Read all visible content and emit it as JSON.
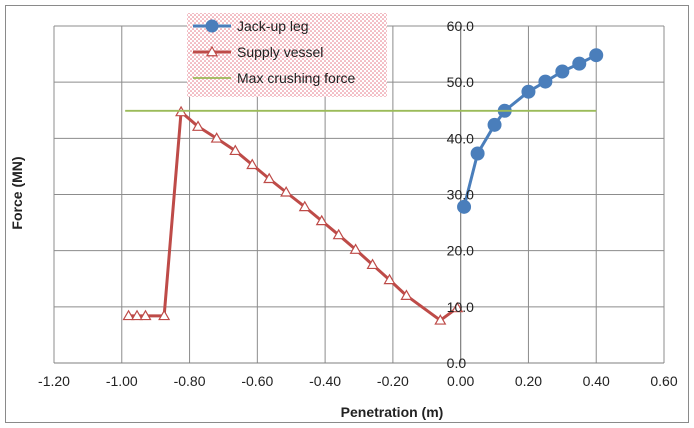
{
  "chart_data": {
    "type": "line",
    "title": "",
    "xlabel": "Penetration (m)",
    "ylabel": "Force (MN)",
    "xlim": [
      -1.2,
      0.6
    ],
    "ylim": [
      0,
      60
    ],
    "x_ticks": [
      "-1.20",
      "-1.00",
      "-0.80",
      "-0.60",
      "-0.40",
      "-0.20",
      "0.00",
      "0.20",
      "0.40",
      "0.60"
    ],
    "y_ticks": [
      "0.0",
      "10.0",
      "20.0",
      "30.0",
      "40.0",
      "50.0",
      "60.0"
    ],
    "grid": "vertical and horizontal major gridlines",
    "y_axis_position": "x = 0 (labels to the right of the axis)",
    "legend": "top-center, dotted pink background",
    "series": [
      {
        "name": "Jack-up leg",
        "color": "#4a7ebb",
        "marker": "filled-circle",
        "x": [
          0.01,
          0.05,
          0.1,
          0.13,
          0.2,
          0.25,
          0.3,
          0.35,
          0.4
        ],
        "y": [
          27.8,
          37.3,
          42.4,
          44.9,
          48.3,
          50.1,
          51.9,
          53.3,
          54.8
        ]
      },
      {
        "name": "Supply vessel",
        "color": "#be4b48",
        "marker": "open-triangle",
        "x": [
          -0.98,
          -0.955,
          -0.93,
          -0.875,
          -0.825,
          -0.775,
          -0.72,
          -0.665,
          -0.615,
          -0.565,
          -0.515,
          -0.46,
          -0.41,
          -0.36,
          -0.31,
          -0.26,
          -0.21,
          -0.16,
          -0.06,
          -0.01
        ],
        "y": [
          8.4,
          8.4,
          8.4,
          8.4,
          44.7,
          42.1,
          40.0,
          37.8,
          35.3,
          32.8,
          30.4,
          27.8,
          25.3,
          22.8,
          20.2,
          17.5,
          14.8,
          12.0,
          7.6,
          9.8
        ]
      },
      {
        "name": "Max crushing force",
        "color": "#9bbb59",
        "marker": "none",
        "x": [
          -0.99,
          0.4
        ],
        "y": [
          44.9,
          44.9
        ]
      }
    ]
  }
}
